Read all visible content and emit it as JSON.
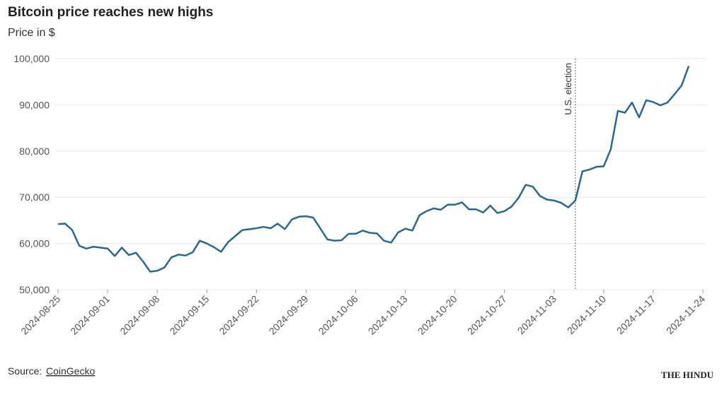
{
  "chart_data": {
    "type": "line",
    "title": "Bitcoin price reaches new highs",
    "subtitle": "Price in $",
    "source_label": "Source:",
    "source": "CoinGecko",
    "publisher": "THE HINDU",
    "annotation": {
      "text": "U.S. election",
      "x": "2024-11-06"
    },
    "x": [
      "2024-08-25",
      "2024-08-26",
      "2024-08-27",
      "2024-08-28",
      "2024-08-29",
      "2024-08-30",
      "2024-08-31",
      "2024-09-01",
      "2024-09-02",
      "2024-09-03",
      "2024-09-04",
      "2024-09-05",
      "2024-09-06",
      "2024-09-07",
      "2024-09-08",
      "2024-09-09",
      "2024-09-10",
      "2024-09-11",
      "2024-09-12",
      "2024-09-13",
      "2024-09-14",
      "2024-09-15",
      "2024-09-16",
      "2024-09-17",
      "2024-09-18",
      "2024-09-19",
      "2024-09-20",
      "2024-09-21",
      "2024-09-22",
      "2024-09-23",
      "2024-09-24",
      "2024-09-25",
      "2024-09-26",
      "2024-09-27",
      "2024-09-28",
      "2024-09-29",
      "2024-09-30",
      "2024-10-01",
      "2024-10-02",
      "2024-10-03",
      "2024-10-04",
      "2024-10-05",
      "2024-10-06",
      "2024-10-07",
      "2024-10-08",
      "2024-10-09",
      "2024-10-10",
      "2024-10-11",
      "2024-10-12",
      "2024-10-13",
      "2024-10-14",
      "2024-10-15",
      "2024-10-16",
      "2024-10-17",
      "2024-10-18",
      "2024-10-19",
      "2024-10-20",
      "2024-10-21",
      "2024-10-22",
      "2024-10-23",
      "2024-10-24",
      "2024-10-25",
      "2024-10-26",
      "2024-10-27",
      "2024-10-28",
      "2024-10-29",
      "2024-10-30",
      "2024-10-31",
      "2024-11-01",
      "2024-11-02",
      "2024-11-03",
      "2024-11-04",
      "2024-11-05",
      "2024-11-06",
      "2024-11-07",
      "2024-11-08",
      "2024-11-09",
      "2024-11-10",
      "2024-11-11",
      "2024-11-12",
      "2024-11-13",
      "2024-11-14",
      "2024-11-15",
      "2024-11-16",
      "2024-11-17",
      "2024-11-18",
      "2024-11-19",
      "2024-11-20",
      "2024-11-21",
      "2024-11-22"
    ],
    "series": [
      {
        "name": "Price",
        "color": "#2a6890",
        "values": [
          64200,
          64300,
          62900,
          59500,
          58900,
          59300,
          59100,
          58900,
          57300,
          59100,
          57500,
          58000,
          56100,
          53900,
          54100,
          54800,
          57000,
          57600,
          57400,
          58100,
          60600,
          60000,
          59200,
          58200,
          60300,
          61600,
          62900,
          63100,
          63300,
          63600,
          63300,
          64300,
          63100,
          65200,
          65800,
          65900,
          65600,
          63300,
          60900,
          60600,
          60700,
          62100,
          62100,
          62800,
          62300,
          62200,
          60600,
          60200,
          62400,
          63200,
          62800,
          66100,
          67000,
          67600,
          67300,
          68400,
          68400,
          68900,
          67400,
          67400,
          66700,
          68200,
          66600,
          67000,
          68000,
          69900,
          72700,
          72300,
          70300,
          69500,
          69300,
          68800,
          67800,
          69300,
          75600,
          76000,
          76600,
          76700,
          80400,
          88700,
          88300,
          90500,
          87300,
          91000,
          90600,
          89900,
          90500,
          92300,
          94200,
          98400
        ]
      }
    ],
    "xlim": [
      "2024-08-25",
      "2024-11-24"
    ],
    "xticks": [
      "2024-08-25",
      "2024-09-01",
      "2024-09-08",
      "2024-09-15",
      "2024-09-22",
      "2024-09-29",
      "2024-10-06",
      "2024-10-13",
      "2024-10-20",
      "2024-10-27",
      "2024-11-03",
      "2024-11-10",
      "2024-11-17",
      "2024-11-24"
    ],
    "ylim": [
      50000,
      100000
    ],
    "yticks": [
      {
        "value": 50000,
        "label": "50,000"
      },
      {
        "value": 60000,
        "label": "60,000"
      },
      {
        "value": 70000,
        "label": "70,000"
      },
      {
        "value": 80000,
        "label": "80,000"
      },
      {
        "value": 90000,
        "label": "90,000"
      },
      {
        "value": 100000,
        "label": "100,000"
      }
    ],
    "grid": true
  }
}
